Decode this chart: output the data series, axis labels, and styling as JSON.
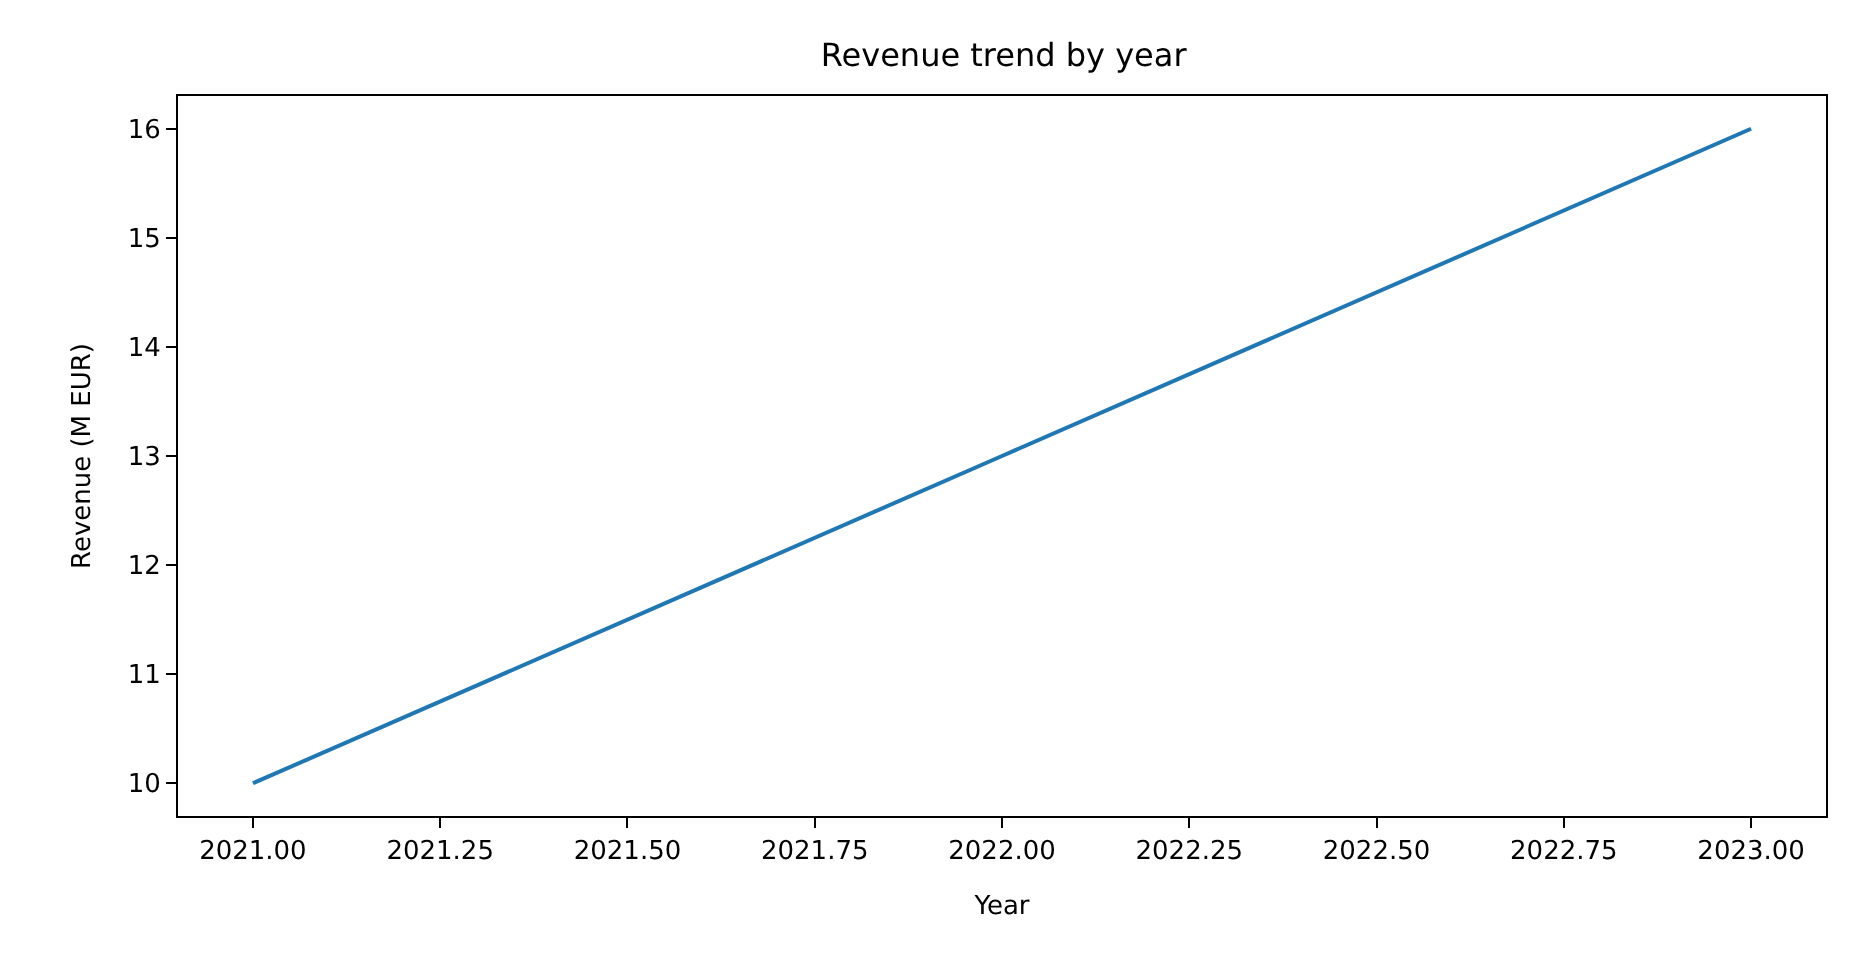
{
  "chart_data": {
    "type": "line",
    "title": "Revenue trend by year",
    "xlabel": "Year",
    "ylabel": "Revenue (M EUR)",
    "x": [
      2021,
      2022,
      2023
    ],
    "series": [
      {
        "color": "#1f77b4",
        "values": [
          10,
          13,
          16
        ]
      }
    ],
    "xlim": [
      2020.9,
      2023.1
    ],
    "xticks": [
      {
        "value": 2021,
        "label": "2021.00"
      },
      {
        "value": 2021.25,
        "label": "2021.25"
      },
      {
        "value": 2021.5,
        "label": "2021.50"
      },
      {
        "value": 2021.75,
        "label": "2021.75"
      },
      {
        "value": 2022,
        "label": "2022.00"
      },
      {
        "value": 2022.25,
        "label": "2022.25"
      },
      {
        "value": 2022.5,
        "label": "2022.50"
      },
      {
        "value": 2022.75,
        "label": "2022.75"
      },
      {
        "value": 2023,
        "label": "2023.00"
      }
    ],
    "ylim": [
      9.7,
      16.3
    ],
    "yticks": [
      10,
      11,
      12,
      13,
      14,
      15,
      16
    ],
    "marker": "none",
    "line_style": "solid"
  }
}
